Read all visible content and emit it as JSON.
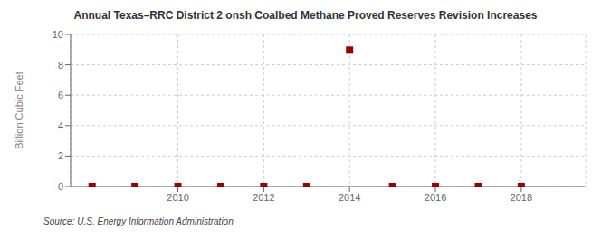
{
  "chart_data": {
    "type": "scatter",
    "title": "Annual Texas–RRC District 2 onsh Coalbed Methane Proved Reserves Revision Increases",
    "y_label": "Billion Cubic Feet",
    "annotations": [
      "Source: U.S. Energy Information Administration"
    ],
    "x": [
      2008,
      2009,
      2010,
      2011,
      2012,
      2013,
      2014,
      2015,
      2016,
      2017,
      2018
    ],
    "values": [
      0,
      0,
      0,
      0,
      0,
      0,
      8.97,
      0,
      0,
      0,
      0
    ],
    "xlim": [
      2007.5,
      2019.5
    ],
    "ylim": [
      0,
      10
    ],
    "xticks": [
      2010,
      2012,
      2014,
      2016,
      2018
    ],
    "yticks": [
      0,
      2,
      4,
      6,
      8,
      10
    ],
    "color": "#990000",
    "marker": "square",
    "grid": true
  }
}
